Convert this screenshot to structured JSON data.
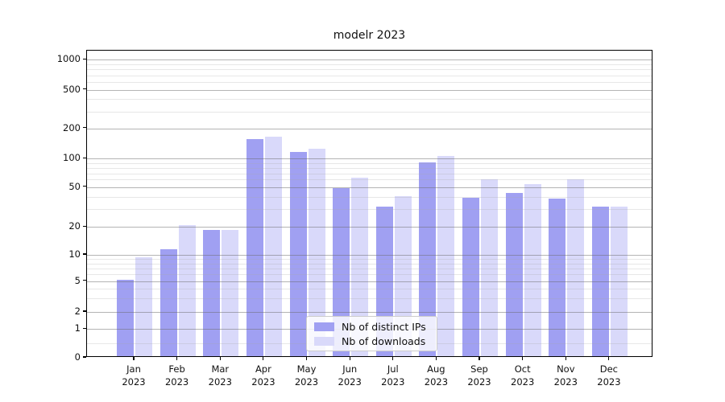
{
  "title": "modelr 2023",
  "colors": {
    "distinct_ips": "#a0a0f2",
    "downloads": "#d9d9fa",
    "grid_major": "#696969",
    "grid_minor": "#aaaaaa",
    "axis": "#000000"
  },
  "y_axis": {
    "tick_labels": [
      "0",
      "1",
      "2",
      "5",
      "10",
      "20",
      "50",
      "100",
      "200",
      "500",
      "1000"
    ]
  },
  "x_axis": {
    "months": [
      "Jan",
      "Feb",
      "Mar",
      "Apr",
      "May",
      "Jun",
      "Jul",
      "Aug",
      "Sep",
      "Oct",
      "Nov",
      "Dec"
    ],
    "year": "2023"
  },
  "legend": {
    "items": [
      {
        "label": "Nb of distinct IPs",
        "color_key": "distinct_ips"
      },
      {
        "label": "Nb of downloads",
        "color_key": "downloads"
      }
    ]
  },
  "chart_data": {
    "type": "bar",
    "title": "modelr 2023",
    "categories": [
      "Jan 2023",
      "Feb 2023",
      "Mar 2023",
      "Apr 2023",
      "May 2023",
      "Jun 2023",
      "Jul 2023",
      "Aug 2023",
      "Sep 2023",
      "Oct 2023",
      "Nov 2023",
      "Dec 2023"
    ],
    "series": [
      {
        "name": "Nb of distinct IPs",
        "values": [
          5,
          11,
          18,
          150,
          112,
          47,
          31,
          88,
          38,
          42,
          37,
          31
        ]
      },
      {
        "name": "Nb of downloads",
        "values": [
          9,
          20,
          18,
          160,
          120,
          60,
          39,
          103,
          58,
          52,
          58,
          31
        ]
      }
    ],
    "ylabel": "",
    "xlabel": "",
    "y_scale": "log-like (symlog: linear segment 0-1, log above)",
    "y_ticks": [
      0,
      1,
      2,
      5,
      10,
      20,
      50,
      100,
      200,
      500,
      1000
    ],
    "ylim": [
      0,
      1400
    ],
    "grid": true,
    "legend_position": "inside lower center"
  }
}
